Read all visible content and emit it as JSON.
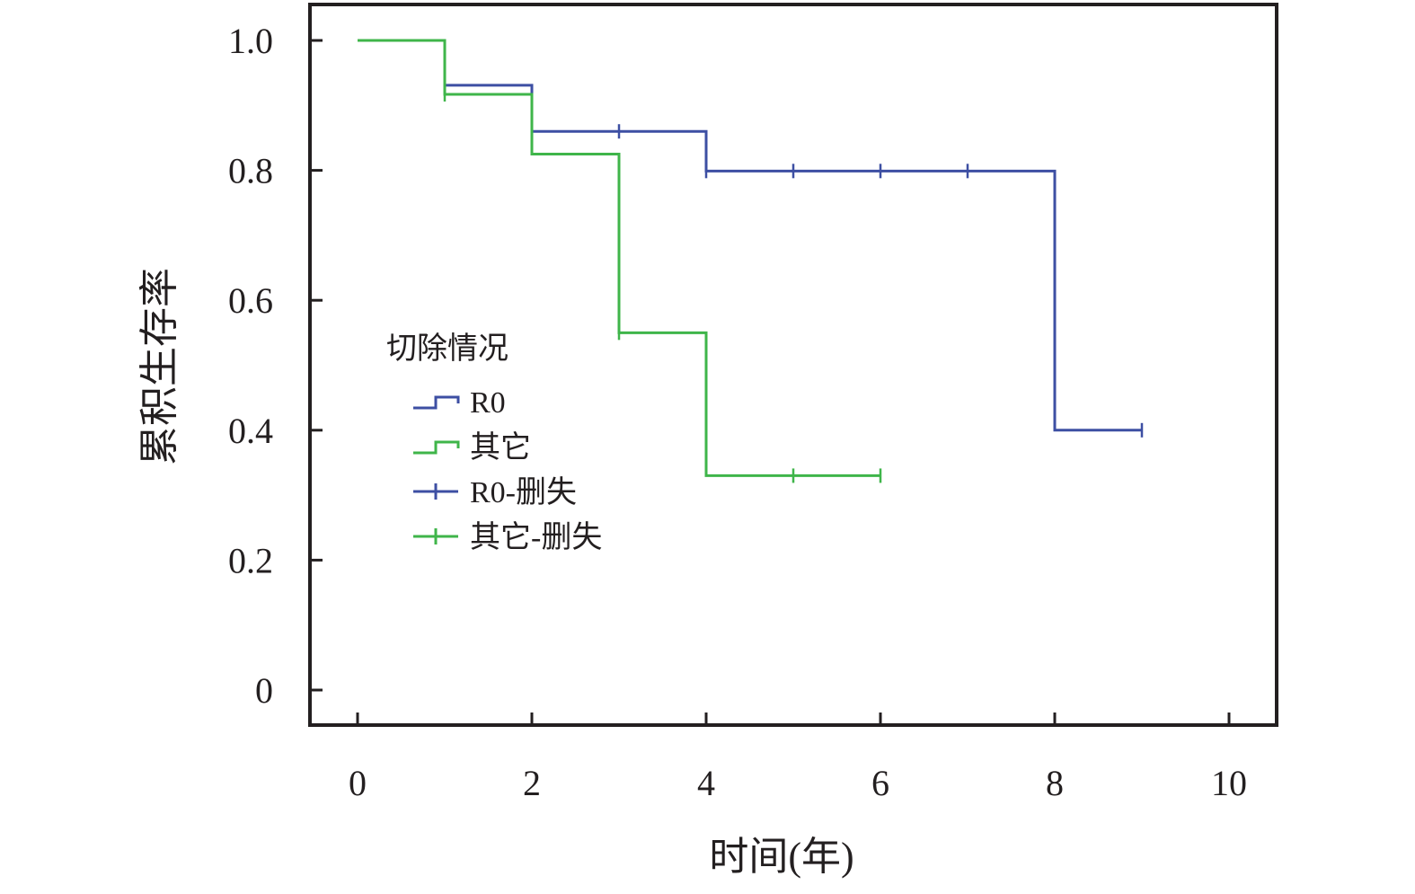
{
  "chart_data": {
    "type": "line",
    "subtype": "kaplan-meier step",
    "xlabel": "时间(年)",
    "ylabel": "累积生存率",
    "xlim": [
      0,
      10
    ],
    "ylim": [
      0,
      1.0
    ],
    "x_ticks": [
      0,
      2,
      4,
      6,
      8,
      10
    ],
    "x_tick_labels": [
      "0",
      "2",
      "4",
      "6",
      "8",
      "10"
    ],
    "y_ticks": [
      0,
      0.2,
      0.4,
      0.6,
      0.8,
      1.0
    ],
    "y_tick_labels": [
      "0",
      "0.2",
      "0.4",
      "0.6",
      "0.8",
      "1.0"
    ],
    "grid": false,
    "legend": {
      "title": "切除情况",
      "placement": "center-left",
      "entries": [
        {
          "label": "R0",
          "series": 0,
          "kind": "step"
        },
        {
          "label": "其它",
          "series": 1,
          "kind": "step"
        },
        {
          "label": "R0-删失",
          "series": 0,
          "kind": "censor"
        },
        {
          "label": "其它-删失",
          "series": 1,
          "kind": "censor"
        }
      ]
    },
    "series": [
      {
        "name": "R0",
        "color": "#3d4fa3",
        "steps": [
          [
            1,
            0.931
          ],
          [
            2,
            0.931
          ],
          [
            2,
            0.86
          ],
          [
            4,
            0.86
          ],
          [
            4,
            0.799
          ],
          [
            8,
            0.799
          ],
          [
            8,
            0.4
          ],
          [
            9,
            0.4
          ]
        ],
        "censored": [
          [
            1,
            0.931
          ],
          [
            2,
            0.86
          ],
          [
            3,
            0.86
          ],
          [
            4,
            0.799
          ],
          [
            5,
            0.799
          ],
          [
            6,
            0.799
          ],
          [
            7,
            0.799
          ],
          [
            9,
            0.4
          ]
        ]
      },
      {
        "name": "其它",
        "color": "#3fb54a",
        "steps": [
          [
            0,
            1.0
          ],
          [
            1,
            1.0
          ],
          [
            1,
            0.917
          ],
          [
            2,
            0.917
          ],
          [
            2,
            0.825
          ],
          [
            3,
            0.825
          ],
          [
            3,
            0.55
          ],
          [
            4,
            0.55
          ],
          [
            4,
            0.33
          ],
          [
            6,
            0.33
          ]
        ],
        "censored": [
          [
            1,
            0.917
          ],
          [
            3,
            0.55
          ],
          [
            5,
            0.33
          ],
          [
            6,
            0.33
          ]
        ]
      }
    ]
  }
}
